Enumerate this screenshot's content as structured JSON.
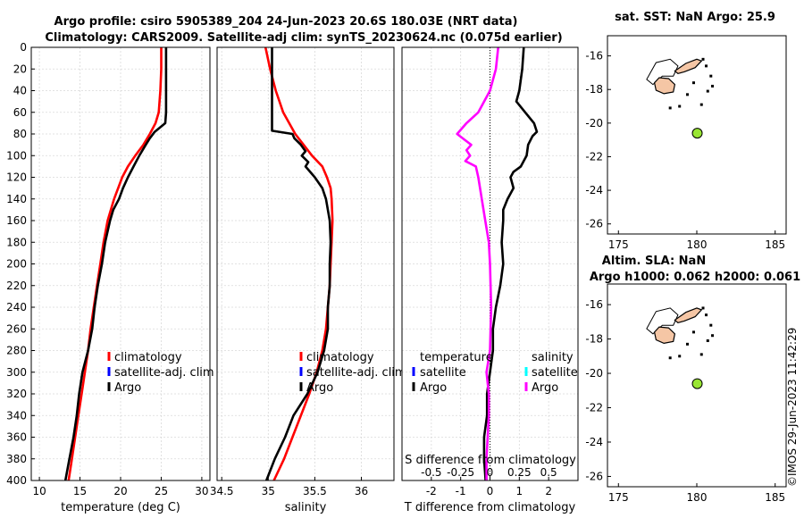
{
  "header": {
    "line1": "Argo profile: csiro 5905389_204 24-Jun-2023 20.6S 180.03E (NRT data)",
    "line2": "Climatology: CARS2009. Satellite-adj clim: synTS_20230624.nc (0.075d earlier)"
  },
  "stamp": "©IMOS 29-Jun-2023 11:42:29",
  "colors": {
    "climatology": "#ff0000",
    "satellite": "#0000ff",
    "argo": "#000000",
    "salinity_argo": "#ff00ff",
    "salinity_satellite": "#00ffff",
    "land": "#f5c6a5",
    "float_marker": "#99e633",
    "grid": "#d9d9d9"
  },
  "chart_data": [
    {
      "id": "temperature",
      "type": "line",
      "xlabel": "temperature (deg C)",
      "ylabel": "",
      "xlim": [
        9,
        31
      ],
      "ylim": [
        0,
        400
      ],
      "y_reversed": true,
      "xticks": [
        10,
        15,
        20,
        25,
        30
      ],
      "yticks": [
        0,
        20,
        40,
        60,
        80,
        100,
        120,
        140,
        160,
        180,
        200,
        220,
        240,
        260,
        280,
        300,
        320,
        340,
        360,
        380,
        400
      ],
      "legend": {
        "position": "lower-right",
        "entries": [
          "climatology",
          "satellite-adj. clim",
          "Argo"
        ]
      },
      "series": [
        {
          "name": "climatology",
          "color": "#ff0000",
          "depth": [
            0,
            20,
            40,
            60,
            70,
            80,
            90,
            100,
            110,
            120,
            130,
            140,
            160,
            180,
            200,
            220,
            240,
            260,
            280,
            300,
            320,
            340,
            360,
            380,
            400
          ],
          "values": [
            25.0,
            25.0,
            24.9,
            24.7,
            24.3,
            23.6,
            22.8,
            21.8,
            20.9,
            20.2,
            19.7,
            19.2,
            18.4,
            17.9,
            17.5,
            17.1,
            16.7,
            16.3,
            16.0,
            15.6,
            15.2,
            14.8,
            14.4,
            14.0,
            13.6
          ]
        },
        {
          "name": "Argo",
          "color": "#000000",
          "depth": [
            0,
            20,
            40,
            60,
            70,
            78,
            84,
            90,
            100,
            110,
            120,
            130,
            140,
            150,
            160,
            180,
            200,
            220,
            240,
            260,
            280,
            300,
            320,
            340,
            360,
            380,
            400
          ],
          "values": [
            25.6,
            25.6,
            25.6,
            25.6,
            25.5,
            24.2,
            23.6,
            23.1,
            22.3,
            21.6,
            20.9,
            20.3,
            19.8,
            19.1,
            18.7,
            18.1,
            17.7,
            17.2,
            16.8,
            16.5,
            16.0,
            15.3,
            14.9,
            14.6,
            14.2,
            13.7,
            13.2
          ]
        }
      ]
    },
    {
      "id": "salinity",
      "type": "line",
      "xlabel": "salinity",
      "xlim": [
        34.45,
        36.35
      ],
      "ylim": [
        0,
        400
      ],
      "y_reversed": true,
      "xticks": [
        34.5,
        35,
        35.5,
        36
      ],
      "legend": {
        "position": "lower-right",
        "entries": [
          "climatology",
          "satellite-adj. clim",
          "Argo"
        ]
      },
      "series": [
        {
          "name": "climatology",
          "color": "#ff0000",
          "depth": [
            0,
            20,
            40,
            60,
            80,
            100,
            110,
            120,
            130,
            140,
            160,
            180,
            200,
            220,
            240,
            260,
            280,
            300,
            320,
            340,
            360,
            380,
            400
          ],
          "values": [
            34.97,
            35.02,
            35.08,
            35.16,
            35.29,
            35.47,
            35.58,
            35.63,
            35.67,
            35.68,
            35.69,
            35.68,
            35.67,
            35.66,
            35.64,
            35.62,
            35.58,
            35.52,
            35.44,
            35.35,
            35.26,
            35.17,
            35.06
          ]
        },
        {
          "name": "Argo",
          "color": "#000000",
          "depth": [
            0,
            20,
            40,
            60,
            70,
            77,
            80,
            84,
            90,
            96,
            100,
            106,
            110,
            120,
            130,
            140,
            160,
            180,
            200,
            220,
            240,
            260,
            280,
            300,
            320,
            340,
            360,
            380,
            400
          ],
          "values": [
            35.04,
            35.04,
            35.04,
            35.04,
            35.04,
            35.04,
            35.26,
            35.28,
            35.35,
            35.4,
            35.36,
            35.43,
            35.4,
            35.5,
            35.58,
            35.62,
            35.66,
            35.67,
            35.66,
            35.66,
            35.64,
            35.64,
            35.6,
            35.53,
            35.42,
            35.27,
            35.18,
            35.07,
            34.98
          ]
        }
      ]
    },
    {
      "id": "difference",
      "type": "line",
      "xlabel": "T difference from climatology",
      "xlabel_top": "S difference from climatology",
      "xlim": [
        -3,
        3
      ],
      "ylim": [
        0,
        400
      ],
      "y_reversed": true,
      "xticks": [
        -2,
        -1,
        0,
        1,
        2
      ],
      "xticks_top": [
        "-0.5",
        "-0.25",
        "0",
        "0.25",
        "0.5"
      ],
      "legend_temperature": {
        "title": "temperature",
        "entries": [
          "satellite",
          "Argo"
        ]
      },
      "legend_salinity": {
        "title": "salinity",
        "entries": [
          "satellite",
          "Argo"
        ]
      },
      "series": [
        {
          "name": "T difference Argo",
          "color": "#000000",
          "depth": [
            0,
            20,
            40,
            50,
            60,
            70,
            78,
            82,
            90,
            100,
            110,
            115,
            120,
            130,
            140,
            150,
            160,
            180,
            200,
            220,
            240,
            260,
            280,
            300,
            320,
            340,
            360,
            380,
            400
          ],
          "values": [
            1.15,
            1.1,
            1.0,
            0.9,
            1.2,
            1.5,
            1.6,
            1.45,
            1.3,
            1.25,
            1.05,
            0.8,
            0.7,
            0.8,
            0.6,
            0.45,
            0.45,
            0.4,
            0.45,
            0.35,
            0.2,
            0.1,
            0.1,
            0.0,
            -0.1,
            -0.1,
            -0.2,
            -0.2,
            -0.15
          ]
        },
        {
          "name": "S difference Argo",
          "color": "#ff00ff",
          "s_scale": 0.25,
          "depth": [
            0,
            20,
            40,
            60,
            70,
            80,
            85,
            90,
            95,
            100,
            105,
            110,
            120,
            140,
            160,
            180,
            200,
            240,
            280,
            300,
            320,
            340,
            360,
            380,
            400
          ],
          "values": [
            0.07,
            0.05,
            0.0,
            -0.1,
            -0.2,
            -0.28,
            -0.22,
            -0.16,
            -0.2,
            -0.17,
            -0.21,
            -0.12,
            -0.1,
            -0.07,
            -0.04,
            -0.01,
            0.0,
            0.01,
            0.0,
            -0.03,
            -0.01,
            -0.01,
            -0.02,
            -0.03,
            -0.03
          ]
        }
      ]
    },
    {
      "id": "map_sst",
      "type": "scatter",
      "title": "sat. SST: NaN Argo: 25.9",
      "xlim": [
        174.3,
        185.7
      ],
      "ylim": [
        -26.6,
        -14.8
      ],
      "xticks": [
        175,
        180,
        185
      ],
      "yticks": [
        -16,
        -18,
        -20,
        -22,
        -24,
        -26
      ],
      "points": [
        {
          "lon": 180.03,
          "lat": -20.6
        }
      ]
    },
    {
      "id": "map_sla",
      "type": "scatter",
      "title": "Altim. SLA: NaN",
      "subtitle": "Argo h1000: 0.062 h2000: 0.061",
      "xlim": [
        174.3,
        185.7
      ],
      "ylim": [
        -26.6,
        -14.8
      ],
      "xticks": [
        175,
        180,
        185
      ],
      "yticks": [
        -16,
        -18,
        -20,
        -22,
        -24,
        -26
      ],
      "points": [
        {
          "lon": 180.03,
          "lat": -20.6
        }
      ]
    }
  ]
}
